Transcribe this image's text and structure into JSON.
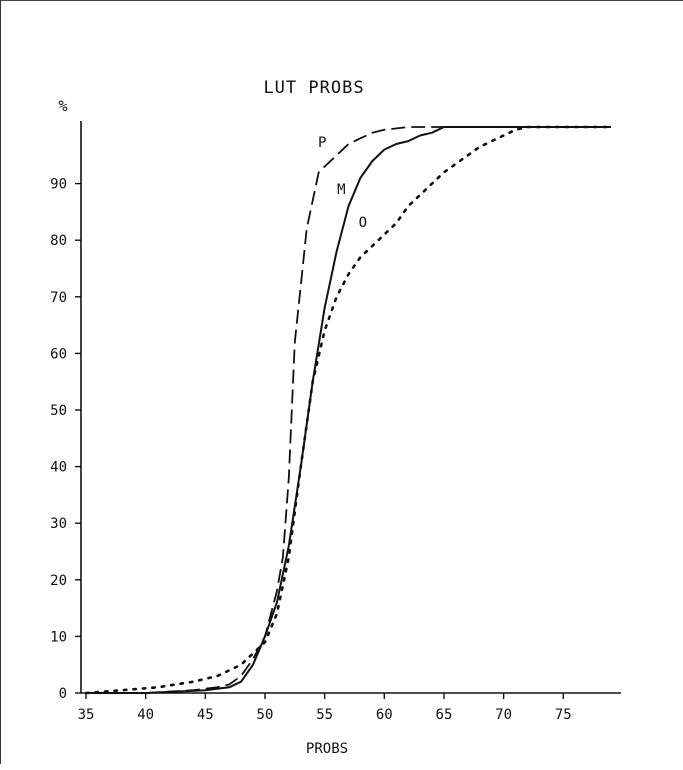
{
  "chart_data": {
    "type": "line",
    "title": "LUT PROBS",
    "ylabel": "%",
    "xlabel": "PROBS",
    "xlim": [
      35,
      79
    ],
    "ylim": [
      0,
      100
    ],
    "x_ticks": [
      "35",
      "40",
      "45",
      "50",
      "55",
      "60",
      "65",
      "70",
      "75"
    ],
    "y_ticks": [
      "0",
      "10",
      "20",
      "30",
      "40",
      "50",
      "60",
      "70",
      "80",
      "90"
    ],
    "legend": "inline-labels",
    "grid": false,
    "series": [
      {
        "name": "P",
        "style": "dashed",
        "label_at": [
          54.8,
          96.5
        ],
        "points": [
          [
            35,
            0
          ],
          [
            40,
            0
          ],
          [
            44,
            0.5
          ],
          [
            46,
            1
          ],
          [
            47,
            1.5
          ],
          [
            48,
            3
          ],
          [
            49,
            6
          ],
          [
            50,
            10
          ],
          [
            50.5,
            14
          ],
          [
            51,
            18
          ],
          [
            51.5,
            24
          ],
          [
            52,
            38
          ],
          [
            52.5,
            62
          ],
          [
            53,
            72
          ],
          [
            53.5,
            82
          ],
          [
            54,
            87
          ],
          [
            54.5,
            92
          ],
          [
            55,
            93
          ],
          [
            56,
            95
          ],
          [
            57,
            97
          ],
          [
            58,
            98
          ],
          [
            59,
            99
          ],
          [
            60,
            99.5
          ],
          [
            62,
            100
          ],
          [
            65,
            100
          ],
          [
            79,
            100
          ]
        ]
      },
      {
        "name": "M",
        "style": "solid",
        "label_at": [
          56.4,
          88.2
        ],
        "points": [
          [
            35,
            0
          ],
          [
            40,
            0
          ],
          [
            45,
            0.5
          ],
          [
            47,
            1
          ],
          [
            48,
            2
          ],
          [
            49,
            5
          ],
          [
            50,
            10
          ],
          [
            51,
            16
          ],
          [
            52,
            26
          ],
          [
            53,
            40
          ],
          [
            54,
            55
          ],
          [
            55,
            68
          ],
          [
            56,
            78
          ],
          [
            57,
            86
          ],
          [
            58,
            91
          ],
          [
            59,
            94
          ],
          [
            60,
            96
          ],
          [
            61,
            97
          ],
          [
            62,
            97.5
          ],
          [
            63,
            98.5
          ],
          [
            64,
            99
          ],
          [
            65,
            100
          ],
          [
            79,
            100
          ]
        ]
      },
      {
        "name": "O",
        "style": "dotted",
        "label_at": [
          58.2,
          82.3
        ],
        "points": [
          [
            35,
            0
          ],
          [
            38,
            0.5
          ],
          [
            41,
            1
          ],
          [
            44,
            2
          ],
          [
            46,
            3
          ],
          [
            48,
            5
          ],
          [
            50,
            9
          ],
          [
            51,
            14
          ],
          [
            52,
            24
          ],
          [
            53,
            40
          ],
          [
            54,
            55
          ],
          [
            55,
            64
          ],
          [
            56,
            70
          ],
          [
            57,
            74
          ],
          [
            58,
            77
          ],
          [
            59,
            79
          ],
          [
            60,
            81
          ],
          [
            61,
            83
          ],
          [
            62,
            86
          ],
          [
            63,
            88
          ],
          [
            64,
            90
          ],
          [
            65,
            92
          ],
          [
            66,
            93.5
          ],
          [
            67,
            95
          ],
          [
            68,
            96.5
          ],
          [
            69,
            97.5
          ],
          [
            70,
            98.5
          ],
          [
            71,
            99.5
          ],
          [
            72,
            100
          ],
          [
            79,
            100
          ]
        ]
      }
    ]
  }
}
